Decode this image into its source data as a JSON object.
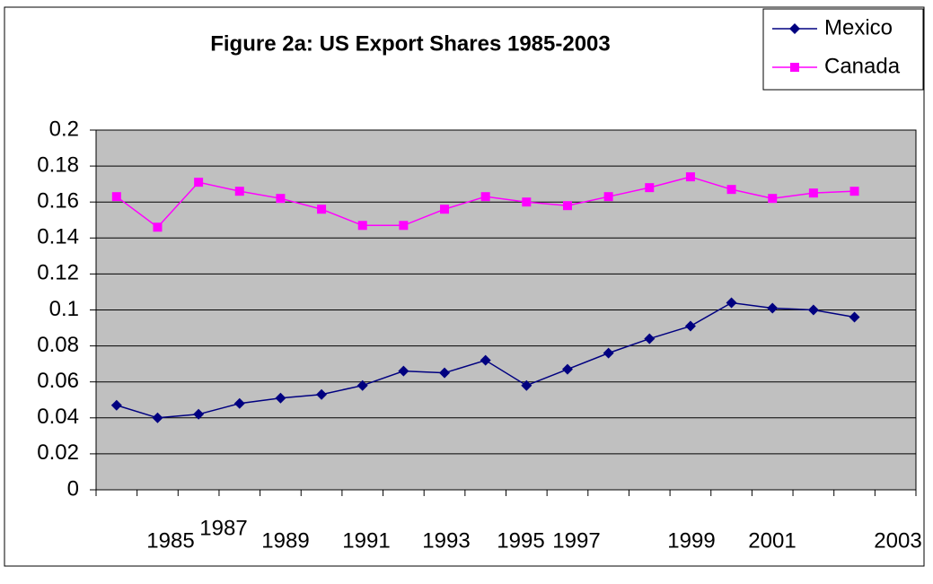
{
  "chart_data": {
    "type": "line",
    "title": "Figure 2a: US Export Shares 1985-2003",
    "categories": [
      "1985",
      null,
      "1987",
      null,
      "1989",
      null,
      "1991",
      null,
      "1993",
      null,
      "1995",
      null,
      "1997",
      null,
      "1999",
      null,
      "2001",
      null,
      "2003"
    ],
    "series": [
      {
        "name": "Mexico",
        "color": "#000080",
        "marker": "diamond",
        "values": [
          0.047,
          0.04,
          0.042,
          0.048,
          0.051,
          0.053,
          0.058,
          0.066,
          0.065,
          0.072,
          0.058,
          0.067,
          0.076,
          0.084,
          0.091,
          0.104,
          0.101,
          0.1,
          0.096
        ]
      },
      {
        "name": "Canada",
        "color": "#ff00ff",
        "marker": "square",
        "values": [
          0.163,
          0.146,
          0.171,
          0.166,
          0.162,
          0.156,
          0.147,
          0.147,
          0.156,
          0.163,
          0.16,
          0.158,
          0.163,
          0.168,
          0.174,
          0.167,
          0.162,
          0.165,
          0.166
        ]
      }
    ],
    "ylim": [
      0,
      0.2
    ],
    "yticks": [
      0,
      0.02,
      0.04,
      0.06,
      0.08,
      0.1,
      0.12,
      0.14,
      0.16,
      0.18,
      0.2
    ],
    "grid": true,
    "legend": "top-right",
    "background": "#c0c0c0"
  }
}
